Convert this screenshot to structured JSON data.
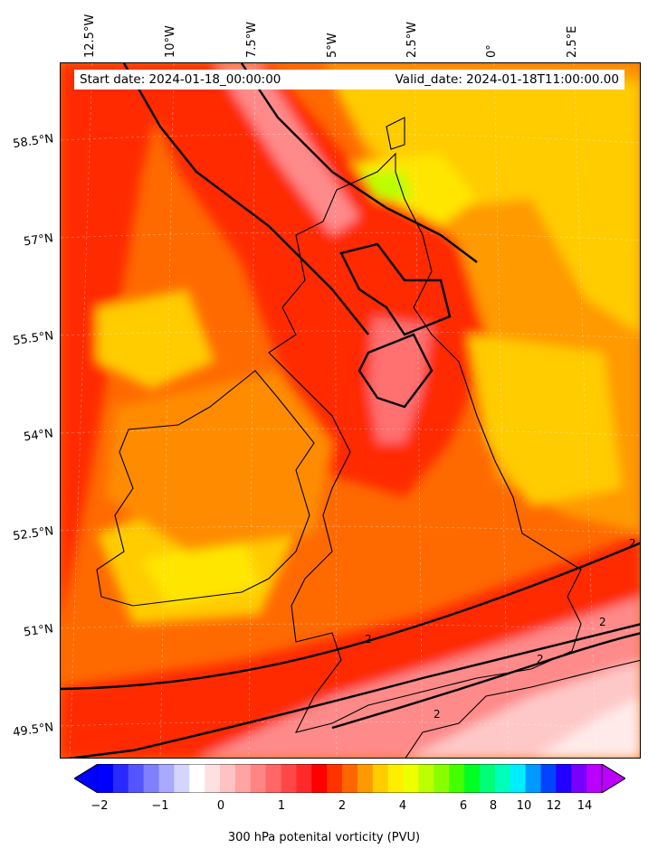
{
  "header": {
    "start_date": "Start date: 2024-01-18_00:00:00",
    "valid_date": "Valid_date: 2024-01-18T11:00:00.00"
  },
  "longitude_labels": [
    "12.5°W",
    "10°W",
    "7.5°W",
    "5°W",
    "2.5°W",
    "0°",
    "2.5°E"
  ],
  "latitude_labels": [
    "58.5°N",
    "57°N",
    "55.5°N",
    "54°N",
    "52.5°N",
    "51°N",
    "49.5°N"
  ],
  "contour_labels": [
    "2",
    "2",
    "2",
    "2",
    "2"
  ],
  "colorbar": {
    "label": "300 hPa potenital vorticity (PVU)",
    "ticks": [
      "−2",
      "−1",
      "0",
      "1",
      "2",
      "4",
      "6",
      "8",
      "10",
      "12",
      "14"
    ],
    "colors": [
      "#0000ff",
      "#2a2aff",
      "#5555ff",
      "#7f7fff",
      "#a9a9ff",
      "#d4d4ff",
      "#ffffff",
      "#ffe0e0",
      "#ffc2c2",
      "#ffa3a3",
      "#ff8585",
      "#ff6666",
      "#ff4747",
      "#ff2929",
      "#ff0000",
      "#ff3300",
      "#ff6600",
      "#ff9900",
      "#ffcc00",
      "#ffee00",
      "#eeff00",
      "#bbff00",
      "#88ff00",
      "#44ff00",
      "#00ff22",
      "#00ff77",
      "#00ffbb",
      "#00eeff",
      "#0099ff",
      "#0044ff",
      "#2200ff",
      "#7700ff",
      "#bb00ff"
    ],
    "extend_low_color": "#0000ff",
    "extend_high_color": "#bb00ff"
  },
  "colors": {
    "background_red": "#ff2a00",
    "orange": "#ff6a00",
    "light_orange": "#ff9a00",
    "yellow": "#ffcc00",
    "bright_yellow": "#ffe600",
    "green": "#99ff00",
    "pink": "#ff8a8a",
    "light_pink": "#ffc8c8"
  }
}
